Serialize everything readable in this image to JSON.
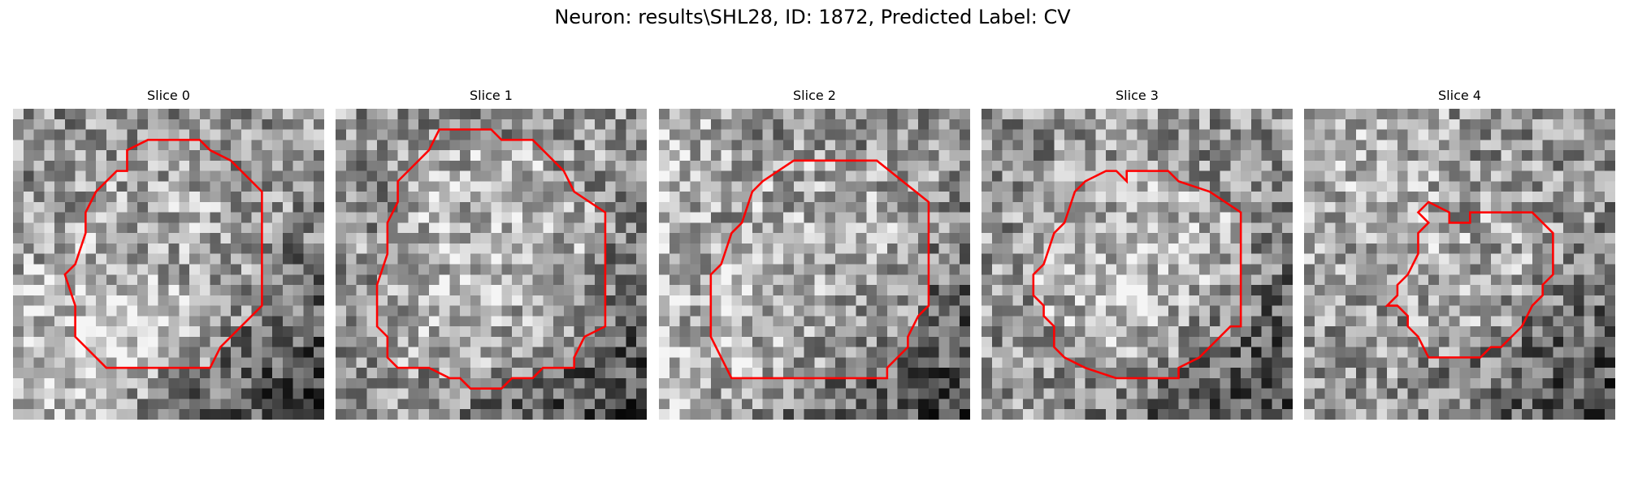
{
  "figure": {
    "title": "Neuron: results\\SHL28, ID: 1872, Predicted Label: CV"
  },
  "slices": [
    {
      "title": "Slice 0",
      "grid_size": 30,
      "contour_color": "#ff0000",
      "contour": [
        [
          11,
          4
        ],
        [
          13,
          3
        ],
        [
          18,
          3
        ],
        [
          19,
          4
        ],
        [
          21,
          5
        ],
        [
          24,
          8
        ],
        [
          24,
          19
        ],
        [
          20,
          23
        ],
        [
          19,
          25
        ],
        [
          9,
          25
        ],
        [
          6,
          22
        ],
        [
          6,
          19
        ],
        [
          5,
          16
        ],
        [
          6,
          15
        ],
        [
          7,
          12
        ],
        [
          7,
          10
        ],
        [
          8,
          8
        ],
        [
          10,
          6
        ],
        [
          11,
          6
        ]
      ],
      "shading": {
        "lighter": "center-left",
        "darker": "bottom-right"
      }
    },
    {
      "title": "Slice 1",
      "grid_size": 30,
      "contour_color": "#ff0000",
      "contour": [
        [
          10,
          2
        ],
        [
          15,
          2
        ],
        [
          16,
          3
        ],
        [
          19,
          3
        ],
        [
          22,
          6
        ],
        [
          23,
          8
        ],
        [
          26,
          10
        ],
        [
          26,
          21
        ],
        [
          24,
          22
        ],
        [
          23,
          24
        ],
        [
          23,
          25
        ],
        [
          20,
          25
        ],
        [
          19,
          26
        ],
        [
          17,
          26
        ],
        [
          16,
          27
        ],
        [
          13,
          27
        ],
        [
          12,
          26
        ],
        [
          11,
          26
        ],
        [
          9,
          25
        ],
        [
          6,
          25
        ],
        [
          5,
          24
        ],
        [
          5,
          22
        ],
        [
          4,
          21
        ],
        [
          4,
          17
        ],
        [
          5,
          14
        ],
        [
          5,
          11
        ],
        [
          6,
          9
        ],
        [
          6,
          7
        ],
        [
          7,
          6
        ],
        [
          9,
          4
        ]
      ],
      "shading": {
        "lighter": "center",
        "darker": "bottom-right"
      }
    },
    {
      "title": "Slice 2",
      "grid_size": 30,
      "contour_color": "#ff0000",
      "contour": [
        [
          13,
          5
        ],
        [
          21,
          5
        ],
        [
          26,
          9
        ],
        [
          26,
          19
        ],
        [
          25,
          20
        ],
        [
          24,
          22
        ],
        [
          24,
          23
        ],
        [
          22,
          25
        ],
        [
          22,
          26
        ],
        [
          21,
          26
        ],
        [
          7,
          26
        ],
        [
          6,
          24
        ],
        [
          5,
          22
        ],
        [
          5,
          16
        ],
        [
          6,
          15
        ],
        [
          7,
          12
        ],
        [
          8,
          11
        ],
        [
          9,
          8
        ],
        [
          10,
          7
        ],
        [
          13,
          5
        ]
      ],
      "shading": {
        "lighter": "left",
        "darker": "bottom-right"
      }
    },
    {
      "title": "Slice 3",
      "grid_size": 30,
      "contour_color": "#ff0000",
      "contour": [
        [
          10,
          7
        ],
        [
          12,
          6
        ],
        [
          13,
          6
        ],
        [
          14,
          7
        ],
        [
          14,
          6
        ],
        [
          18,
          6
        ],
        [
          19,
          7
        ],
        [
          22,
          8
        ],
        [
          25,
          10
        ],
        [
          25,
          21
        ],
        [
          24,
          21
        ],
        [
          22,
          23
        ],
        [
          21,
          24
        ],
        [
          19,
          25
        ],
        [
          19,
          26
        ],
        [
          13,
          26
        ],
        [
          10,
          25
        ],
        [
          8,
          24
        ],
        [
          7,
          23
        ],
        [
          7,
          21
        ],
        [
          6,
          20
        ],
        [
          6,
          19
        ],
        [
          5,
          18
        ],
        [
          5,
          16
        ],
        [
          6,
          15
        ],
        [
          7,
          12
        ],
        [
          8,
          11
        ],
        [
          9,
          8
        ]
      ],
      "shading": {
        "lighter": "center",
        "darker": "bottom-right"
      }
    },
    {
      "title": "Slice 4",
      "grid_size": 30,
      "contour_color": "#ff0000",
      "contour": [
        [
          12,
          9
        ],
        [
          14,
          10
        ],
        [
          14,
          11
        ],
        [
          16,
          11
        ],
        [
          16,
          10
        ],
        [
          22,
          10
        ],
        [
          23,
          11
        ],
        [
          24,
          12
        ],
        [
          24,
          16
        ],
        [
          23,
          17
        ],
        [
          23,
          18
        ],
        [
          22,
          19
        ],
        [
          21,
          21
        ],
        [
          20,
          22
        ],
        [
          19,
          23
        ],
        [
          18,
          23
        ],
        [
          17,
          24
        ],
        [
          12,
          24
        ],
        [
          11,
          22
        ],
        [
          10,
          21
        ],
        [
          10,
          20
        ],
        [
          9,
          19
        ],
        [
          8,
          19
        ],
        [
          9,
          18
        ],
        [
          9,
          17
        ],
        [
          10,
          16
        ],
        [
          11,
          14
        ],
        [
          11,
          12
        ],
        [
          12,
          11
        ],
        [
          11,
          10
        ]
      ],
      "shading": {
        "lighter": "top-left",
        "darker": "bottom-right"
      }
    }
  ]
}
